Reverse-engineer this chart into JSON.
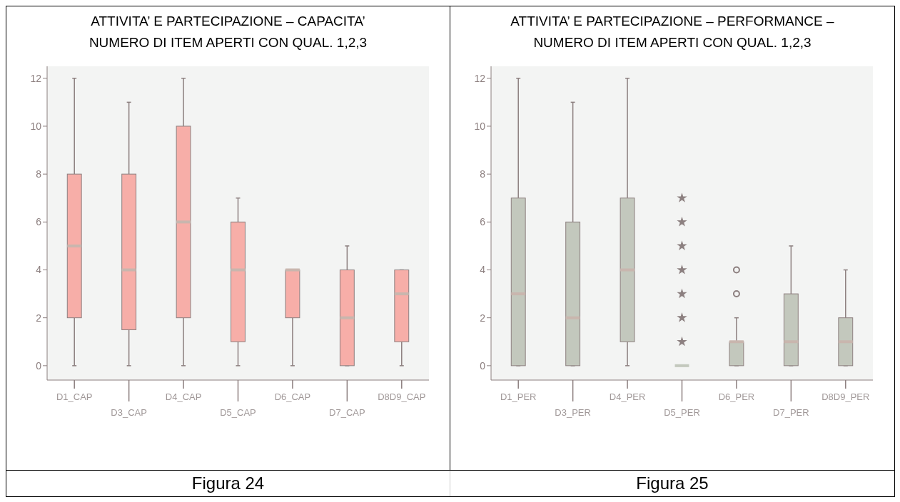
{
  "chart_data": [
    {
      "type": "box",
      "title": "ATTIVITA’ E PARTECIPAZIONE – CAPACITA’\nNUMERO DI ITEM APERTI CON QUAL. 1,2,3",
      "categories": [
        "D1_CAP",
        "D3_CAP",
        "D4_CAP",
        "D5_CAP",
        "D6_CAP",
        "D7_CAP",
        "D8D9_CAP"
      ],
      "ylim": [
        -0.6,
        12.5
      ],
      "yticks": [
        0,
        2,
        4,
        6,
        8,
        10,
        12
      ],
      "annotations": [
        "Figura 24"
      ],
      "series": [
        {
          "type": "box",
          "color": "#f7aea8",
          "boxes": [
            {
              "low": 0,
              "q1": 2,
              "median": 5,
              "q3": 8,
              "high": 12
            },
            {
              "low": 0,
              "q1": 1.5,
              "median": 4,
              "q3": 8,
              "high": 11
            },
            {
              "low": 0,
              "q1": 2,
              "median": 6,
              "q3": 10,
              "high": 12
            },
            {
              "low": 0,
              "q1": 1,
              "median": 4,
              "q3": 6,
              "high": 7
            },
            {
              "low": 0,
              "q1": 2,
              "median": 4,
              "q3": 4,
              "high": 4
            },
            {
              "low": 0,
              "q1": 0,
              "median": 2,
              "q3": 4,
              "high": 5
            },
            {
              "low": 0,
              "q1": 1,
              "median": 3,
              "q3": 4,
              "high": 4
            }
          ]
        }
      ]
    },
    {
      "type": "box",
      "title": "ATTIVITA’ E PARTECIPAZIONE – PERFORMANCE –\nNUMERO DI ITEM APERTI CON QUAL. 1,2,3",
      "categories": [
        "D1_PER",
        "D3_PER",
        "D4_PER",
        "D5_PER",
        "D6_PER",
        "D7_PER",
        "D8D9_PER"
      ],
      "ylim": [
        -0.6,
        12.5
      ],
      "yticks": [
        0,
        2,
        4,
        6,
        8,
        10,
        12
      ],
      "annotations": [
        "Figura 25"
      ],
      "series": [
        {
          "type": "box",
          "color": "#c3c8bd",
          "boxes": [
            {
              "low": 0,
              "q1": 0,
              "median": 3,
              "q3": 7,
              "high": 12
            },
            {
              "low": 0,
              "q1": 0,
              "median": 2,
              "q3": 6,
              "high": 11
            },
            {
              "low": 0,
              "q1": 1,
              "median": 4,
              "q3": 7,
              "high": 12
            },
            {
              "low": 0,
              "q1": 0,
              "median": 0,
              "q3": 0,
              "high": 0
            },
            {
              "low": 0,
              "q1": 0,
              "median": 1,
              "q3": 1,
              "high": 2,
              "outliers": [
                3,
                4
              ]
            },
            {
              "low": 0,
              "q1": 0,
              "median": 1,
              "q3": 3,
              "high": 5
            },
            {
              "low": 0,
              "q1": 0,
              "median": 1,
              "q3": 2,
              "high": 4
            }
          ]
        },
        {
          "type": "scatter",
          "color": "#8c8080",
          "marker": "star",
          "x": [
            "D5_PER",
            "D5_PER",
            "D5_PER",
            "D5_PER",
            "D5_PER",
            "D5_PER",
            "D5_PER"
          ],
          "values": [
            1,
            2,
            3,
            4,
            5,
            6,
            7
          ]
        }
      ]
    }
  ]
}
